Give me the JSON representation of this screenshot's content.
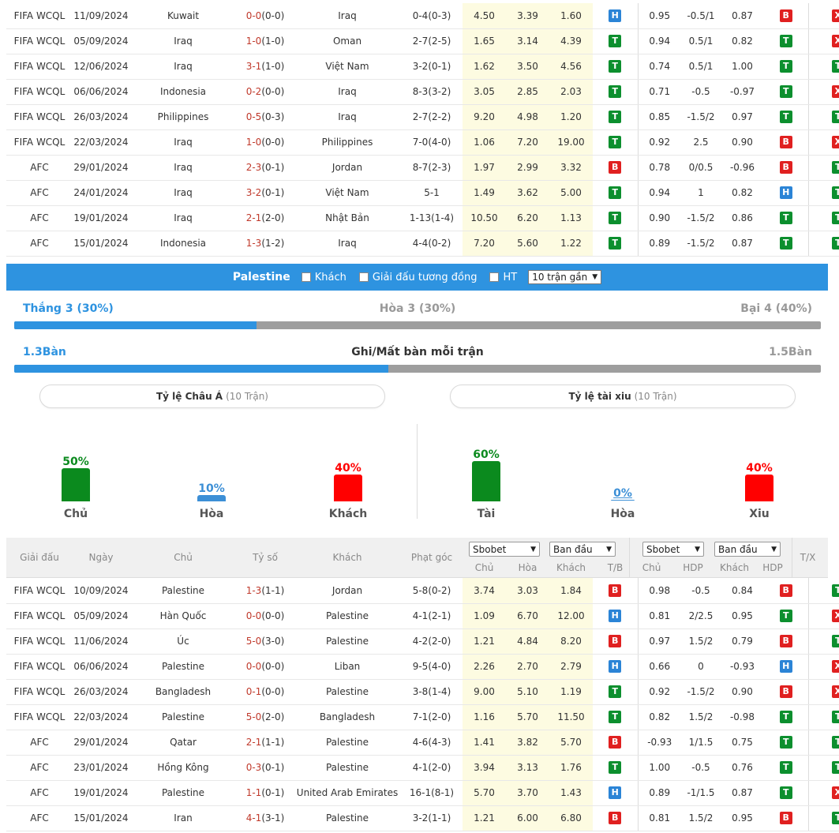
{
  "top_rows": [
    {
      "league": "FIFA WCQL",
      "date": "11/09/2024",
      "home": "Kuwait",
      "home_hl": false,
      "score": "0-0",
      "ht": "(0-0)",
      "away": "Iraq",
      "away_hl": true,
      "corner": "0-4(0-3)",
      "o1": "4.50",
      "o2": "3.39",
      "o3": "1.60",
      "r1": "H",
      "a1": "0.95",
      "a2": "-0.5/1",
      "a3": "0.87",
      "r2": "B",
      "r3": "X"
    },
    {
      "league": "FIFA WCQL",
      "date": "05/09/2024",
      "home": "Iraq",
      "home_hl": true,
      "score": "1-0",
      "ht": "(1-0)",
      "away": "Oman",
      "away_hl": false,
      "corner": "2-7(2-5)",
      "o1": "1.65",
      "o2": "3.14",
      "o3": "4.39",
      "r1": "T",
      "a1": "0.94",
      "a2": "0.5/1",
      "a3": "0.82",
      "r2": "T",
      "r3": "X"
    },
    {
      "league": "FIFA WCQL",
      "date": "12/06/2024",
      "home": "Iraq",
      "home_hl": true,
      "score": "3-1",
      "ht": "(1-0)",
      "away": "Việt Nam",
      "away_hl": false,
      "corner": "3-2(0-1)",
      "o1": "1.62",
      "o2": "3.50",
      "o3": "4.56",
      "r1": "T",
      "a1": "0.74",
      "a2": "0.5/1",
      "a3": "1.00",
      "r2": "T",
      "r3": "T"
    },
    {
      "league": "FIFA WCQL",
      "date": "06/06/2024",
      "home": "Indonesia",
      "home_hl": false,
      "score": "0-2",
      "ht": "(0-0)",
      "away": "Iraq",
      "away_hl": true,
      "corner": "8-3(3-2)",
      "o1": "3.05",
      "o2": "2.85",
      "o3": "2.03",
      "r1": "T",
      "a1": "0.71",
      "a2": "-0.5",
      "a3": "-0.97",
      "r2": "T",
      "r3": "X"
    },
    {
      "league": "FIFA WCQL",
      "date": "26/03/2024",
      "home": "Philippines",
      "home_hl": false,
      "score": "0-5",
      "ht": "(0-3)",
      "away": "Iraq",
      "away_hl": true,
      "corner": "2-7(2-2)",
      "o1": "9.20",
      "o2": "4.98",
      "o3": "1.20",
      "r1": "T",
      "a1": "0.85",
      "a2": "-1.5/2",
      "a3": "0.97",
      "r2": "T",
      "r3": "T"
    },
    {
      "league": "FIFA WCQL",
      "date": "22/03/2024",
      "home": "Iraq",
      "home_hl": true,
      "score": "1-0",
      "ht": "(0-0)",
      "away": "Philippines",
      "away_hl": false,
      "corner": "7-0(4-0)",
      "o1": "1.06",
      "o2": "7.20",
      "o3": "19.00",
      "r1": "T",
      "a1": "0.92",
      "a2": "2.5",
      "a3": "0.90",
      "r2": "B",
      "r3": "X"
    },
    {
      "league": "AFC",
      "date": "29/01/2024",
      "home": "Iraq",
      "home_hl": true,
      "score": "2-3",
      "ht": "(0-1)",
      "away": "Jordan",
      "away_hl": false,
      "corner": "8-7(2-3)",
      "o1": "1.97",
      "o2": "2.99",
      "o3": "3.32",
      "r1": "B",
      "a1": "0.78",
      "a2": "0/0.5",
      "a3": "-0.96",
      "r2": "B",
      "r3": "T"
    },
    {
      "league": "AFC",
      "date": "24/01/2024",
      "home": "Iraq",
      "home_hl": true,
      "score": "3-2",
      "ht": "(0-1)",
      "away": "Việt Nam",
      "away_hl": false,
      "corner": "5-1",
      "o1": "1.49",
      "o2": "3.62",
      "o3": "5.00",
      "r1": "T",
      "a1": "0.94",
      "a2": "1",
      "a3": "0.82",
      "r2": "H",
      "r3": "T"
    },
    {
      "league": "AFC",
      "date": "19/01/2024",
      "home": "Iraq",
      "home_hl": true,
      "score": "2-1",
      "ht": "(2-0)",
      "away": "Nhật Bản",
      "away_hl": false,
      "corner": "1-13(1-4)",
      "o1": "10.50",
      "o2": "6.20",
      "o3": "1.13",
      "r1": "T",
      "a1": "0.90",
      "a2": "-1.5/2",
      "a3": "0.86",
      "r2": "T",
      "r3": "T"
    },
    {
      "league": "AFC",
      "date": "15/01/2024",
      "home": "Indonesia",
      "home_hl": false,
      "score": "1-3",
      "ht": "(1-2)",
      "away": "Iraq",
      "away_hl": true,
      "corner": "4-4(0-2)",
      "o1": "7.20",
      "o2": "5.60",
      "o3": "1.22",
      "r1": "T",
      "a1": "0.89",
      "a2": "-1.5/2",
      "a3": "0.87",
      "r2": "T",
      "r3": "T"
    }
  ],
  "filter": {
    "team": "Palestine",
    "opt_away": "Khách",
    "opt_same_league": "Giải đấu tương đồng",
    "opt_ht": "HT",
    "select": "10 trận gần"
  },
  "record": {
    "win": "Thắng 3 (30%)",
    "draw": "Hòa 3 (30%)",
    "loss": "Bại 4 (40%)",
    "win_fraction": 0.3
  },
  "goals": {
    "scored": "1.3Bàn",
    "title": "Ghi/Mất bàn mỗi trận",
    "conceded": "1.5Bàn",
    "scored_fraction": 0.464
  },
  "asian": {
    "title": "Tỷ lệ Châu Á",
    "count": "(10 Trận)",
    "bars": [
      {
        "pct": "50%",
        "label": "Chủ",
        "value": 50,
        "color": "#0b8a1e"
      },
      {
        "pct": "10%",
        "label": "Hòa",
        "value": 10,
        "color": "#3c8fd6"
      },
      {
        "pct": "40%",
        "label": "Khách",
        "value": 40,
        "color": "#ff0000"
      }
    ]
  },
  "ou": {
    "title": "Tỷ lệ tài xiu",
    "count": "(10 Trận)",
    "bars": [
      {
        "pct": "60%",
        "label": "Tài",
        "value": 60,
        "color": "#0b8a1e"
      },
      {
        "pct": "0%",
        "label": "Hòa",
        "value": 0,
        "color": "#3c8fd6"
      },
      {
        "pct": "40%",
        "label": "Xiu",
        "value": 40,
        "color": "#ff0000"
      }
    ]
  },
  "header": {
    "league": "Giải đấu",
    "date": "Ngày",
    "home": "Chủ",
    "score": "Tỷ số",
    "away": "Khách",
    "corner": "Phạt góc",
    "dd1": "Sbobet",
    "dd2": "Ban đầu",
    "dd3": "Sbobet",
    "dd4": "Ban đầu",
    "c_home": "Chủ",
    "c_draw": "Hòa",
    "c_away": "Khách",
    "c_tb": "T/B",
    "c_home2": "Chủ",
    "c_hdp": "HDP",
    "c_away2": "Khách",
    "c_hdp2": "HDP",
    "c_tx": "T/X"
  },
  "bottom_rows": [
    {
      "league": "FIFA WCQL",
      "date": "10/09/2024",
      "home": "Palestine",
      "home_hl": true,
      "score": "1-3",
      "ht": "(1-1)",
      "away": "Jordan",
      "away_hl": false,
      "corner": "5-8(0-2)",
      "o1": "3.74",
      "o2": "3.03",
      "o3": "1.84",
      "r1": "B",
      "a1": "0.98",
      "a2": "-0.5",
      "a3": "0.84",
      "r2": "B",
      "r3": "T"
    },
    {
      "league": "FIFA WCQL",
      "date": "05/09/2024",
      "home": "Hàn Quốc",
      "home_hl": false,
      "score": "0-0",
      "ht": "(0-0)",
      "away": "Palestine",
      "away_hl": true,
      "corner": "4-1(2-1)",
      "o1": "1.09",
      "o2": "6.70",
      "o3": "12.00",
      "r1": "H",
      "a1": "0.81",
      "a2": "2/2.5",
      "a3": "0.95",
      "r2": "T",
      "r3": "X"
    },
    {
      "league": "FIFA WCQL",
      "date": "11/06/2024",
      "home": "Úc",
      "home_hl": false,
      "score": "5-0",
      "ht": "(3-0)",
      "away": "Palestine",
      "away_hl": true,
      "corner": "4-2(2-0)",
      "o1": "1.21",
      "o2": "4.84",
      "o3": "8.20",
      "r1": "B",
      "a1": "0.97",
      "a2": "1.5/2",
      "a3": "0.79",
      "r2": "B",
      "r3": "T"
    },
    {
      "league": "FIFA WCQL",
      "date": "06/06/2024",
      "home": "Palestine",
      "home_hl": true,
      "score": "0-0",
      "ht": "(0-0)",
      "away": "Liban",
      "away_hl": false,
      "corner": "9-5(4-0)",
      "o1": "2.26",
      "o2": "2.70",
      "o3": "2.79",
      "r1": "H",
      "a1": "0.66",
      "a2": "0",
      "a3": "-0.93",
      "r2": "H",
      "r3": "X"
    },
    {
      "league": "FIFA WCQL",
      "date": "26/03/2024",
      "home": "Bangladesh",
      "home_hl": false,
      "score": "0-1",
      "ht": "(0-0)",
      "away": "Palestine",
      "away_hl": true,
      "corner": "3-8(1-4)",
      "o1": "9.00",
      "o2": "5.10",
      "o3": "1.19",
      "r1": "T",
      "a1": "0.92",
      "a2": "-1.5/2",
      "a3": "0.90",
      "r2": "B",
      "r3": "X"
    },
    {
      "league": "FIFA WCQL",
      "date": "22/03/2024",
      "home": "Palestine",
      "home_hl": true,
      "score": "5-0",
      "ht": "(2-0)",
      "away": "Bangladesh",
      "away_hl": false,
      "corner": "7-1(2-0)",
      "o1": "1.16",
      "o2": "5.70",
      "o3": "11.50",
      "r1": "T",
      "a1": "0.82",
      "a2": "1.5/2",
      "a3": "-0.98",
      "r2": "T",
      "r3": "T"
    },
    {
      "league": "AFC",
      "date": "29/01/2024",
      "home": "Qatar",
      "home_hl": false,
      "score": "2-1",
      "ht": "(1-1)",
      "away": "Palestine",
      "away_hl": true,
      "corner": "4-6(4-3)",
      "o1": "1.41",
      "o2": "3.82",
      "o3": "5.70",
      "r1": "B",
      "a1": "-0.93",
      "a2": "1/1.5",
      "a3": "0.75",
      "r2": "T",
      "r3": "T"
    },
    {
      "league": "AFC",
      "date": "23/01/2024",
      "home": "Hồng Kông",
      "home_hl": false,
      "score": "0-3",
      "ht": "(0-1)",
      "away": "Palestine",
      "away_hl": true,
      "corner": "4-1(2-0)",
      "o1": "3.94",
      "o2": "3.13",
      "o3": "1.76",
      "r1": "T",
      "a1": "1.00",
      "a2": "-0.5",
      "a3": "0.76",
      "r2": "T",
      "r3": "T"
    },
    {
      "league": "AFC",
      "date": "19/01/2024",
      "home": "Palestine",
      "home_hl": true,
      "score": "1-1",
      "ht": "(0-1)",
      "away": "United Arab Emirates",
      "away_hl": false,
      "corner": "16-1(8-1)",
      "o1": "5.70",
      "o2": "3.70",
      "o3": "1.43",
      "r1": "H",
      "a1": "0.89",
      "a2": "-1/1.5",
      "a3": "0.87",
      "r2": "T",
      "r3": "X"
    },
    {
      "league": "AFC",
      "date": "15/01/2024",
      "home": "Iran",
      "home_hl": false,
      "score": "4-1",
      "ht": "(3-1)",
      "away": "Palestine",
      "away_hl": true,
      "corner": "3-2(1-1)",
      "o1": "1.21",
      "o2": "6.00",
      "o3": "6.80",
      "r1": "B",
      "a1": "0.81",
      "a2": "1.5/2",
      "a3": "0.95",
      "r2": "B",
      "r3": "T"
    }
  ]
}
